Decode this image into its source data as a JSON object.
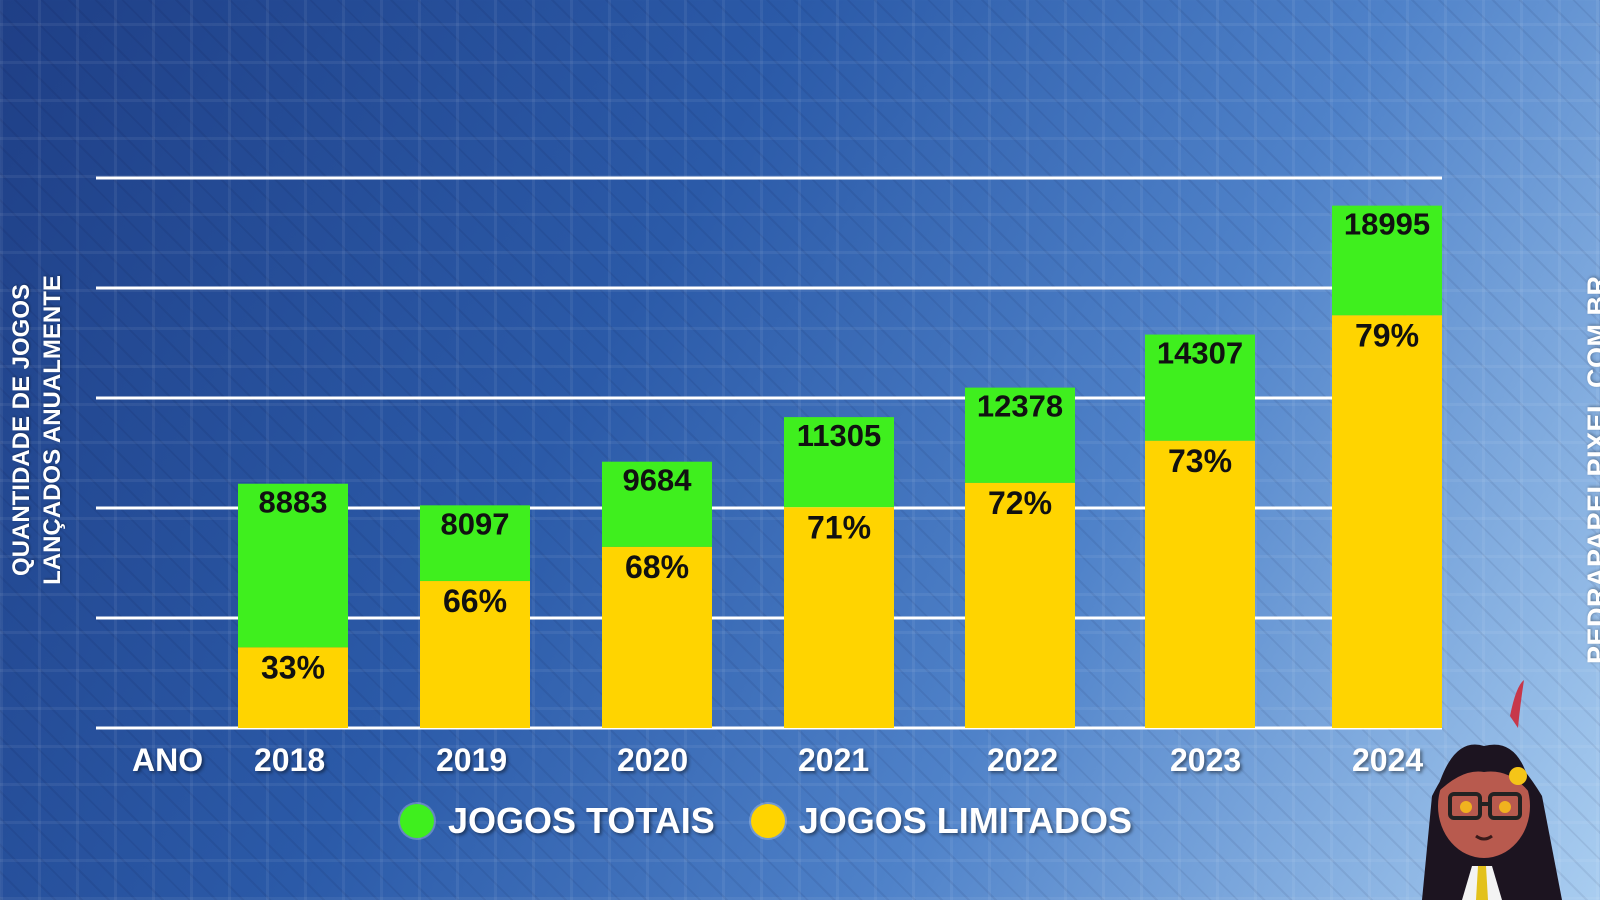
{
  "chart_data": {
    "type": "bar",
    "ylabel": [
      "QUANTIDADE DE JOGOS",
      "LANÇADOS ANUALMENTE"
    ],
    "xlabel": "ANO",
    "categories": [
      "2018",
      "2019",
      "2020",
      "2021",
      "2022",
      "2023",
      "2024"
    ],
    "ylim": [
      0,
      20000
    ],
    "grid": true,
    "legend_position": "bottom",
    "series": [
      {
        "name": "JOGOS TOTAIS",
        "color": "#3fef1e",
        "values": [
          8883,
          8097,
          9684,
          11305,
          12378,
          14307,
          18995
        ],
        "labels": [
          "8883",
          "8097",
          "9684",
          "11305",
          "12378",
          "14307",
          "18995"
        ]
      },
      {
        "name": "JOGOS LIMITADOS",
        "color": "#ffd400",
        "percent": [
          33,
          66,
          68,
          71,
          72,
          73,
          79
        ],
        "labels": [
          "33%",
          "66%",
          "68%",
          "71%",
          "72%",
          "73%",
          "79%"
        ]
      }
    ]
  },
  "watermark": "PEDRAPAPELPIXEL.COM.BR",
  "mascot_icon": "anime-girl-mascot-icon"
}
